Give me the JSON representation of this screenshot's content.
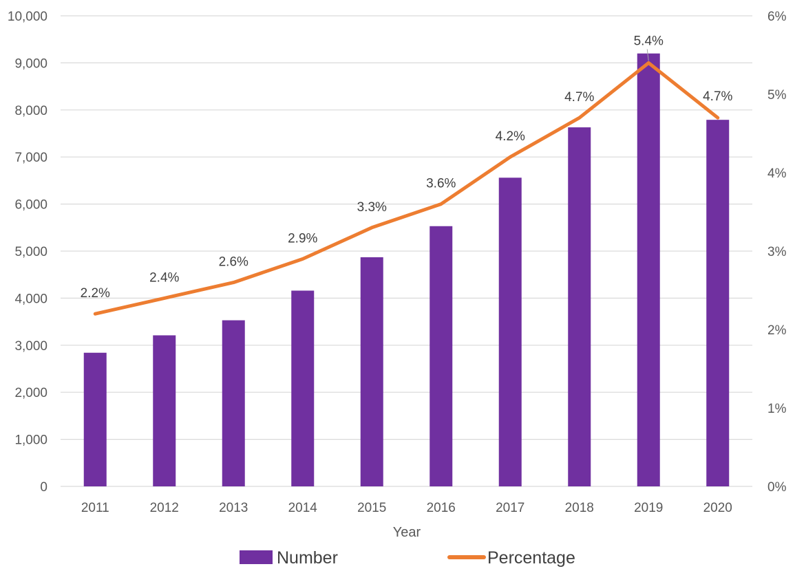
{
  "chart_data": {
    "type": "bar",
    "categories": [
      "2011",
      "2012",
      "2013",
      "2014",
      "2015",
      "2016",
      "2017",
      "2018",
      "2019",
      "2020"
    ],
    "xlabel": "Year",
    "series": [
      {
        "name": "Number",
        "type": "bar",
        "axis": "left",
        "color": "#7030A0",
        "values": [
          2840,
          3210,
          3530,
          4160,
          4870,
          5530,
          6560,
          7630,
          9200,
          7790
        ]
      },
      {
        "name": "Percentage",
        "type": "line",
        "axis": "right",
        "color": "#ED7D31",
        "values": [
          2.2,
          2.4,
          2.6,
          2.9,
          3.3,
          3.6,
          4.2,
          4.7,
          5.4,
          4.7
        ],
        "data_labels": [
          "2.2%",
          "2.4%",
          "2.6%",
          "2.9%",
          "3.3%",
          "3.6%",
          "4.2%",
          "4.7%",
          "5.4%",
          "4.7%"
        ]
      }
    ],
    "y_left": {
      "ylim": [
        0,
        10000
      ],
      "ticks": [
        0,
        1000,
        2000,
        3000,
        4000,
        5000,
        6000,
        7000,
        8000,
        9000,
        10000
      ],
      "tick_labels": [
        "0",
        "1,000",
        "2,000",
        "3,000",
        "4,000",
        "5,000",
        "6,000",
        "7,000",
        "8,000",
        "9,000",
        "10,000"
      ]
    },
    "y_right": {
      "ylim": [
        0,
        6
      ],
      "ticks": [
        0,
        1,
        2,
        3,
        4,
        5,
        6
      ],
      "tick_labels": [
        "0%",
        "1%",
        "2%",
        "3%",
        "4%",
        "5%",
        "6%"
      ]
    },
    "grid": true,
    "legend": {
      "position": "bottom",
      "entries": [
        "Number",
        "Percentage"
      ]
    },
    "colors": {
      "gridline": "#D9D9D9",
      "tick_text": "#595959",
      "label_text": "#404040"
    }
  }
}
